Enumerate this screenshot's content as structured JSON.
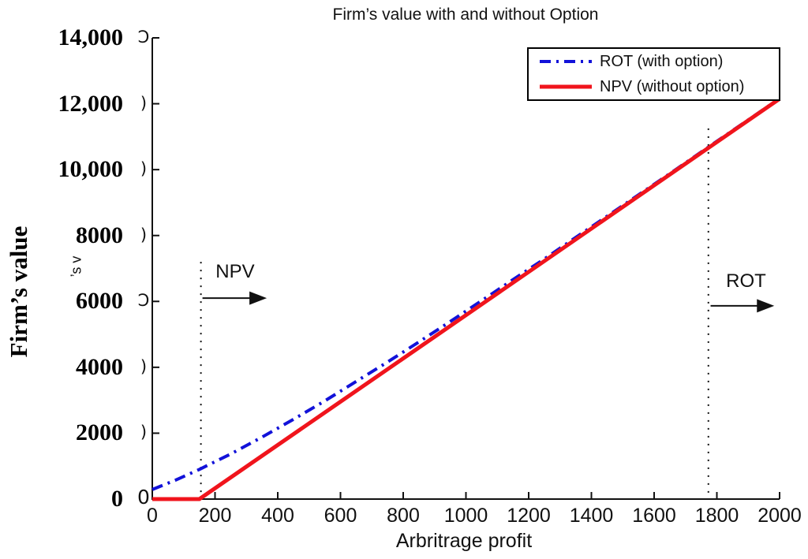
{
  "colors": {
    "rot": "#1212d9",
    "npv": "#f0141c",
    "axis": "#111111",
    "annotation": "#111111"
  },
  "legend": {
    "items": [
      {
        "label": "ROT (with option)",
        "series": "rot",
        "style": "dash-dot"
      },
      {
        "label": "NPV (without option)",
        "series": "npv",
        "style": "solid"
      }
    ]
  },
  "artifacts": {
    "ylabel_remnant": "’s v",
    "tick_remnants": [
      {
        "value": 14000,
        "glyph": "Ɔ"
      },
      {
        "value": 12000,
        "glyph": ")"
      },
      {
        "value": 10000,
        "glyph": ")"
      },
      {
        "value": 8000,
        "glyph": ")"
      },
      {
        "value": 6000,
        "glyph": "Ɔ"
      },
      {
        "value": 4000,
        "glyph": ")"
      },
      {
        "value": 2000,
        "glyph": ")"
      },
      {
        "value": 0,
        "glyph": "0"
      }
    ]
  },
  "chart_data": {
    "type": "line",
    "title": "Firm’s value with and without Option",
    "xlabel": "Arbritrage profit",
    "ylabel": "Firm’s value",
    "xlim": [
      0,
      2000
    ],
    "ylim": [
      0,
      14000
    ],
    "grid": false,
    "legend_position": "top-right",
    "x_ticks": {
      "values": [
        0,
        200,
        400,
        600,
        800,
        1000,
        1200,
        1400,
        1600,
        1800,
        2000
      ],
      "labels": [
        "0",
        "200",
        "400",
        "600",
        "800",
        "1000",
        "1200",
        "1400",
        "1600",
        "1800",
        "2000"
      ]
    },
    "y_ticks": {
      "values": [
        0,
        2000,
        4000,
        6000,
        8000,
        10000,
        12000,
        14000
      ],
      "labels": [
        "0",
        "2000",
        "4000",
        "6000",
        "8000",
        "10,000",
        "12,000",
        "14,000"
      ]
    },
    "series": [
      {
        "name": "ROT (with option)",
        "key": "rot",
        "style": "dash-dot",
        "color": "#1212d9",
        "x": [
          0,
          75,
          150,
          250,
          350,
          450,
          550,
          650,
          750,
          850,
          950,
          1050,
          1150,
          1250,
          1350,
          1500,
          1650,
          1800,
          2000
        ],
        "y": [
          290,
          580,
          900,
          1370,
          1880,
          2420,
          2980,
          3570,
          4160,
          4770,
          5390,
          6020,
          6660,
          7290,
          7940,
          8910,
          9880,
          10860,
          12160
        ]
      },
      {
        "name": "NPV (without option)",
        "key": "npv",
        "style": "solid",
        "color": "#f0141c",
        "x": [
          0,
          150,
          2000
        ],
        "y": [
          0,
          0,
          12150
        ]
      }
    ],
    "annotations": [
      {
        "label": "NPV",
        "threshold_x": 155,
        "guide_top_y": 7200,
        "text_x": 264,
        "text_y": 6890,
        "arrow": {
          "y": 6100,
          "x_from": 160,
          "x_to": 365
        }
      },
      {
        "label": "ROT",
        "threshold_x": 1773,
        "guide_top_y": 11250,
        "text_x": 1893,
        "text_y": 6600,
        "arrow": {
          "y": 5865,
          "x_from": 1780,
          "x_to": 1983
        }
      }
    ]
  }
}
